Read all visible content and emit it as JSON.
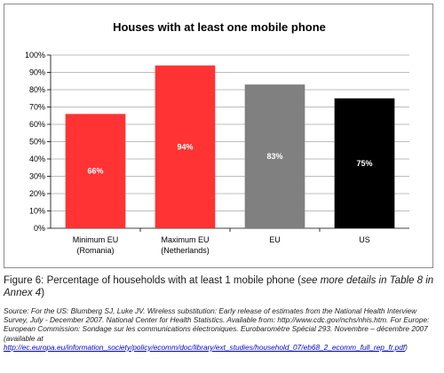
{
  "chart_data": {
    "type": "bar",
    "title": "Houses with at least one mobile phone",
    "categories": [
      [
        "Minimum EU",
        "(Romania)"
      ],
      [
        "Maximum EU",
        "(Netherlands)"
      ],
      [
        "EU"
      ],
      [
        "US"
      ]
    ],
    "values": [
      66,
      94,
      83,
      75
    ],
    "data_labels": [
      "66%",
      "94%",
      "83%",
      "75%"
    ],
    "bar_colors": [
      "#ff3333",
      "#ff3333",
      "#808080",
      "#000000"
    ],
    "ylim": [
      0,
      100
    ],
    "yticks": [
      0,
      10,
      20,
      30,
      40,
      50,
      60,
      70,
      80,
      90,
      100
    ],
    "ytick_labels": [
      "0%",
      "10%",
      "20%",
      "30%",
      "40%",
      "50%",
      "60%",
      "70%",
      "80%",
      "90%",
      "100%"
    ],
    "grid": true,
    "legend": "none"
  },
  "caption": {
    "main": "Figure 6: Percentage of households with at least 1 mobile phone (",
    "italic": "see more details in Table 8 in Annex 4",
    "end": ")"
  },
  "source": {
    "text": "Source: For the US: Blumberg SJ, Luke JV. Wireless substitution: Early release of estimates from the National Health Interview Survey, July - December 2007. National Center for Health Statistics. Available from: http://www.cdc.gov/nchs/nhis.htm. For Europe: European Commission: Sondage sur les communications électroniques. Eurobaromètre Spécial 293. Novembre – décembre 2007 (available at ",
    "link": "http://ec.europa.eu/information_society/policy/ecomm/doc/library/ext_studies/household_07/eb68_2_ecomm_full_rep_fr.pdf",
    "end": ")"
  }
}
